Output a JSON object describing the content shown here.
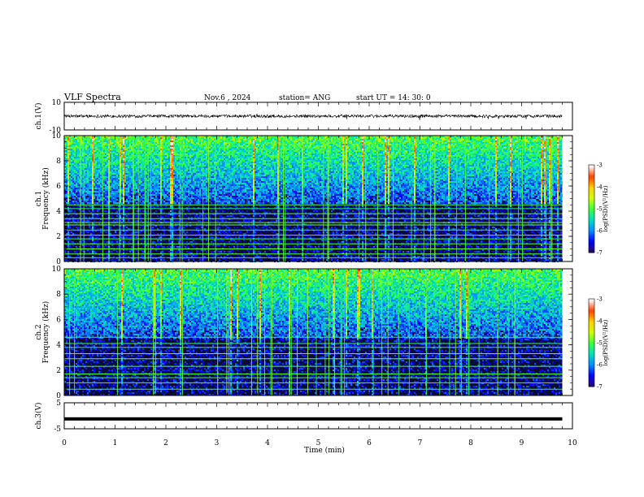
{
  "header": {
    "title": "VLF Spectra",
    "date": "Nov.6 , 2024",
    "station": "station= ANG",
    "start": "start UT = 14: 30: 0"
  },
  "colors": {
    "background": "#ffffff",
    "spectrogram_floor": "#0a0a3a",
    "colormap": [
      "#2b0a6e",
      "#0000ff",
      "#0090ff",
      "#00e0c0",
      "#3cff3c",
      "#d0ff00",
      "#ffd000",
      "#ff4000",
      "#ffffff"
    ]
  },
  "chart_data": [
    {
      "type": "line",
      "name": "ch1-waveform",
      "ylabel": "ch.1(V)",
      "ylim": [
        -10,
        10
      ],
      "yticks": [
        "10",
        "-10"
      ],
      "xlim": [
        0,
        10
      ],
      "description_level_v": 0,
      "x_min": [
        0,
        9.8
      ]
    },
    {
      "type": "heatmap",
      "name": "ch1-spectrogram",
      "ylabel_line1": "ch.1",
      "ylabel_line2": "Frequency (kHz)",
      "ylim": [
        0,
        10
      ],
      "yticks": [
        "0",
        "2",
        "4",
        "6",
        "8",
        "10"
      ],
      "xlim": [
        0,
        10
      ],
      "data_x_range_min": [
        0,
        9.8
      ],
      "colorbar": {
        "label": "log(PSD)(V²/Hz)",
        "range": [
          -7,
          -3
        ],
        "ticks": [
          "-3",
          "-4",
          "-5",
          "-6",
          "-7"
        ]
      },
      "tone_lines_khz": [
        0.3,
        0.6,
        1.0,
        1.4,
        1.8,
        2.1,
        2.5,
        2.9,
        3.1,
        3.4,
        3.8,
        4.2,
        4.5
      ]
    },
    {
      "type": "heatmap",
      "name": "ch2-spectrogram",
      "ylabel_line1": "ch.2",
      "ylabel_line2": "Frequency (kHz)",
      "ylim": [
        0,
        10
      ],
      "yticks": [
        "0",
        "2",
        "4",
        "6",
        "8",
        "10"
      ],
      "xlim": [
        0,
        10
      ],
      "data_x_range_min": [
        0,
        9.8
      ],
      "colorbar": {
        "label": "log(PSD)(V²/Hz)",
        "range": [
          -7,
          -3
        ],
        "ticks": [
          "-3",
          "-4",
          "-5",
          "-6",
          "-7"
        ]
      },
      "tone_lines_khz": [
        0.5,
        1.0,
        1.4,
        1.7,
        2.3,
        2.9,
        3.3,
        3.8,
        4.1,
        4.6
      ]
    },
    {
      "type": "line",
      "name": "ch3-level",
      "ylabel": "ch.3(V)",
      "ylim": [
        -5,
        5
      ],
      "yticks": [
        "5",
        "-5"
      ],
      "xlim": [
        0,
        10
      ],
      "level_v": -1.2,
      "x_min": [
        0,
        9.8
      ]
    }
  ],
  "time_axis": {
    "label": "Time (min)",
    "ticks": [
      "0",
      "1",
      "2",
      "3",
      "4",
      "5",
      "6",
      "7",
      "8",
      "9",
      "10"
    ]
  }
}
